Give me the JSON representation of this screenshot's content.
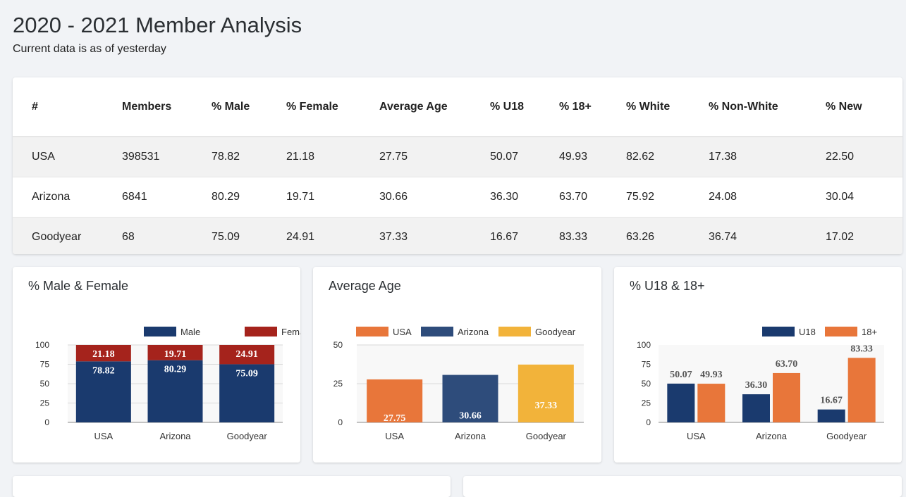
{
  "page": {
    "title": "2020 - 2021 Member Analysis",
    "subtitle": "Current data is as of yesterday"
  },
  "table": {
    "headers": [
      "#",
      "Members",
      "% Male",
      "% Female",
      "Average Age",
      "% U18",
      "% 18+",
      "% White",
      "% Non-White",
      "% New"
    ],
    "rows": [
      [
        "USA",
        "398531",
        "78.82",
        "21.18",
        "27.75",
        "50.07",
        "49.93",
        "82.62",
        "17.38",
        "22.50"
      ],
      [
        "Arizona",
        "6841",
        "80.29",
        "19.71",
        "30.66",
        "36.30",
        "63.70",
        "75.92",
        "24.08",
        "30.04"
      ],
      [
        "Goodyear",
        "68",
        "75.09",
        "24.91",
        "37.33",
        "16.67",
        "83.33",
        "63.26",
        "36.74",
        "17.02"
      ]
    ]
  },
  "chart_data": [
    {
      "type": "bar",
      "stacked": true,
      "title": "% Male & Female",
      "categories": [
        "USA",
        "Arizona",
        "Goodyear"
      ],
      "series": [
        {
          "name": "Male",
          "values": [
            78.82,
            80.29,
            75.09
          ],
          "color": "#1a3a6e"
        },
        {
          "name": "Female",
          "values": [
            21.18,
            19.71,
            24.91
          ],
          "color": "#a5231c"
        }
      ],
      "ylim": [
        0,
        100
      ],
      "yticks": [
        "0",
        "25",
        "50",
        "75",
        "100"
      ],
      "legend": "top-right",
      "grid": true
    },
    {
      "type": "bar",
      "title": "Average Age",
      "categories": [
        "USA",
        "Arizona",
        "Goodyear"
      ],
      "values": [
        27.75,
        30.66,
        37.33
      ],
      "colors": [
        "#e8763a",
        "#2e4c7b",
        "#f2b33a"
      ],
      "legend_entries": [
        "USA",
        "Arizona",
        "Goodyear"
      ],
      "ylim": [
        0,
        50
      ],
      "yticks": [
        "0",
        "25",
        "50"
      ],
      "legend": "top",
      "grid": true
    },
    {
      "type": "bar",
      "title": "% U18 & 18+",
      "categories": [
        "USA",
        "Arizona",
        "Goodyear"
      ],
      "series": [
        {
          "name": "U18",
          "values": [
            50.07,
            36.3,
            16.67
          ],
          "color": "#1a3a6e"
        },
        {
          "name": "18+",
          "values": [
            49.93,
            63.7,
            83.33
          ],
          "color": "#e8763a"
        }
      ],
      "ylim": [
        0,
        100
      ],
      "yticks": [
        "0",
        "25",
        "50",
        "75",
        "100"
      ],
      "legend": "top-right",
      "grid": false
    }
  ]
}
